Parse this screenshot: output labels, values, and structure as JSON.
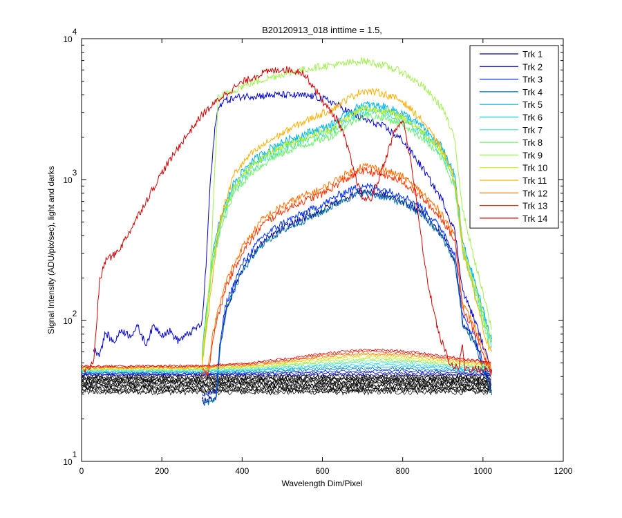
{
  "chart_data": {
    "type": "line",
    "title": "B20120913_018 inttime = 1.5,",
    "xlabel": "Wavelength Dim/Pixel",
    "ylabel": "Signal Intensity (ADU/pix/sec), light and darks",
    "xlim": [
      0,
      1200
    ],
    "ylim": [
      10,
      10000
    ],
    "yscale": "log",
    "x_ticks": [
      "0",
      "200",
      "400",
      "600",
      "800",
      "1000",
      "1200"
    ],
    "y_ticks": [
      {
        "base": "10",
        "exp": "1"
      },
      {
        "base": "10",
        "exp": "2"
      },
      {
        "base": "10",
        "exp": "3"
      },
      {
        "base": "10",
        "exp": "4"
      }
    ],
    "legend_position": "top-right",
    "series": [
      {
        "name": "Trk 1",
        "color": "#00008f",
        "kind": "blue_mid",
        "factor": 0.64
      },
      {
        "name": "Trk 2",
        "color": "#0000d0",
        "kind": "blue_high",
        "factor": 1.0
      },
      {
        "name": "Trk 3",
        "color": "#0030ff",
        "kind": "blue_mid",
        "factor": 0.7
      },
      {
        "name": "Trk 4",
        "color": "#0070b0",
        "kind": "blue_mid",
        "factor": 0.62
      },
      {
        "name": "Trk 5",
        "color": "#00b0e0",
        "kind": "green_mid",
        "factor": 1.18
      },
      {
        "name": "Trk 6",
        "color": "#10c8f0",
        "kind": "green_mid",
        "factor": 1.12
      },
      {
        "name": "Trk 7",
        "color": "#40e0d0",
        "kind": "green_mid",
        "factor": 1.05
      },
      {
        "name": "Trk 8",
        "color": "#70f070",
        "kind": "green_mid",
        "factor": 0.98
      },
      {
        "name": "Trk 9",
        "color": "#a0f050",
        "kind": "green_high",
        "factor": 1.0
      },
      {
        "name": "Trk 10",
        "color": "#d0f000",
        "kind": "green_mid",
        "factor": 1.1
      },
      {
        "name": "Trk 11",
        "color": "#ffb000",
        "kind": "orange_high",
        "factor": 1.0
      },
      {
        "name": "Trk 12",
        "color": "#ff7000",
        "kind": "orange_mid",
        "factor": 1.0
      },
      {
        "name": "Trk 13",
        "color": "#ff3000",
        "kind": "orange_mid",
        "factor": 0.92
      },
      {
        "name": "Trk 14",
        "color": "#d00000",
        "kind": "red",
        "factor": 1.0
      }
    ],
    "darks": {
      "color": "#000000",
      "count": 14,
      "level_min": 31,
      "level_max": 40
    }
  }
}
